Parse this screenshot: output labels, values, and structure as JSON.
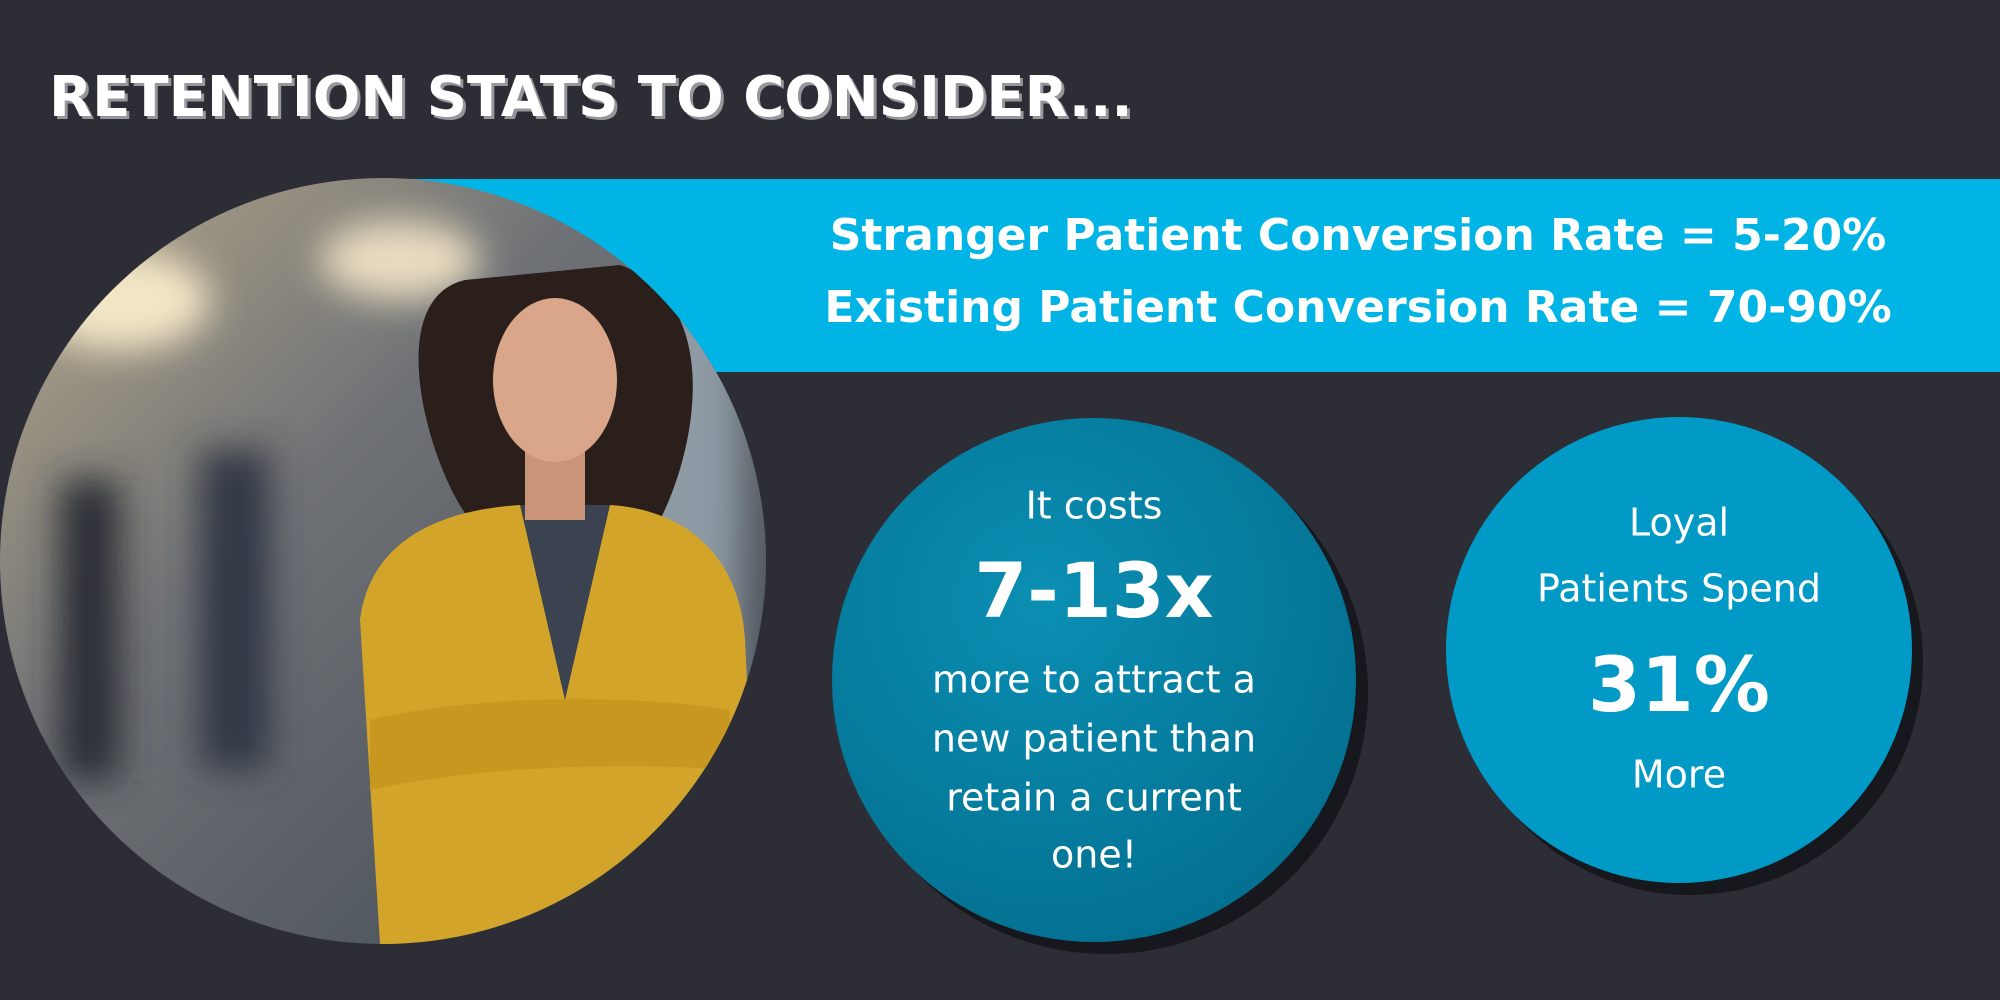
{
  "header": {
    "title": "RETENTION STATS TO CONSIDER..."
  },
  "banner": {
    "lines": [
      "Stranger Patient Conversion Rate = 5-20%",
      "Existing Patient Conversion Rate = 70-90%"
    ]
  },
  "stats": [
    {
      "intro": "It costs",
      "figure": "7-13x",
      "lines": [
        "more to attract a",
        "new patient than",
        "retain a current",
        "one!"
      ]
    },
    {
      "intro": "Loyal",
      "intro2": "Patients Spend",
      "figure": "31%",
      "lines": [
        "More"
      ]
    }
  ]
}
